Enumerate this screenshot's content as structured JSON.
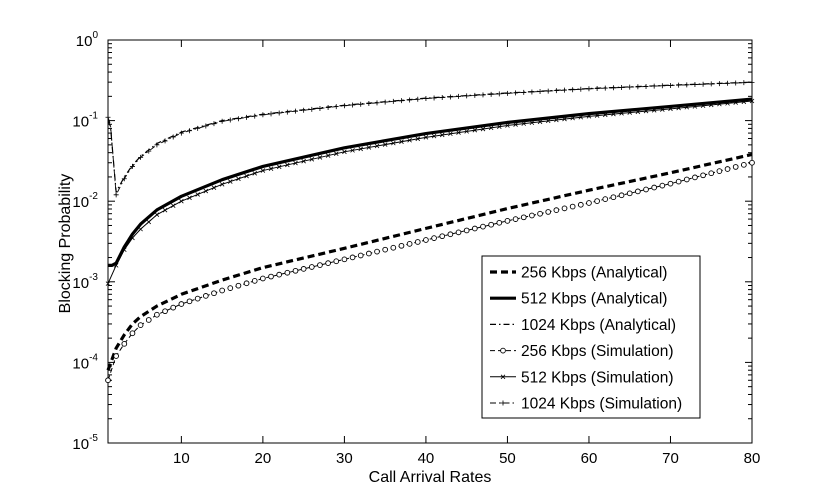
{
  "chart_data": {
    "type": "line",
    "title": "",
    "xlabel": "Call Arrival Rates",
    "ylabel": "Blocking Probability",
    "xlim": [
      1,
      80
    ],
    "ylim": [
      1e-05,
      1
    ],
    "yscale": "log",
    "grid": false,
    "legend_position": "bottom-right",
    "x_ticks": [
      10,
      20,
      30,
      40,
      50,
      60,
      70,
      80
    ],
    "x_tick_labels": [
      "10",
      "20",
      "30",
      "40",
      "50",
      "60",
      "70",
      "80"
    ],
    "y_ticks": [
      {
        "value": 1e-05,
        "base": "10",
        "exp": "-5"
      },
      {
        "value": 0.0001,
        "base": "10",
        "exp": "-4"
      },
      {
        "value": 0.001,
        "base": "10",
        "exp": "-3"
      },
      {
        "value": 0.01,
        "base": "10",
        "exp": "-2"
      },
      {
        "value": 0.1,
        "base": "10",
        "exp": "-1"
      },
      {
        "value": 1,
        "base": "10",
        "exp": "0"
      }
    ],
    "series": [
      {
        "name": "256 Kbps (Analytical)",
        "style": "dashed-thick",
        "marker": "none",
        "x": [
          1,
          2,
          3,
          4,
          5,
          7,
          10,
          15,
          20,
          30,
          40,
          50,
          60,
          70,
          80
        ],
        "y": [
          8e-05,
          0.00015,
          0.00022,
          0.0003,
          0.00037,
          0.0005,
          0.0007,
          0.00105,
          0.0015,
          0.0026,
          0.0046,
          0.0081,
          0.0137,
          0.0225,
          0.038
        ]
      },
      {
        "name": "512 Kbps (Analytical)",
        "style": "solid-thick",
        "marker": "none",
        "x": [
          1,
          1.5,
          2,
          3,
          4,
          5,
          7,
          10,
          15,
          20,
          30,
          40,
          50,
          60,
          70,
          80
        ],
        "y": [
          0.0016,
          0.0016,
          0.0017,
          0.0027,
          0.0039,
          0.0052,
          0.0078,
          0.0115,
          0.0185,
          0.027,
          0.046,
          0.069,
          0.095,
          0.122,
          0.15,
          0.185
        ]
      },
      {
        "name": "1024 Kbps (Analytical)",
        "style": "dashdot",
        "marker": "none",
        "x": [
          1,
          1.3,
          2,
          3,
          4,
          5,
          7,
          10,
          15,
          20,
          30,
          40,
          50,
          60,
          70,
          80
        ],
        "y": [
          0.1,
          0.085,
          0.013,
          0.02,
          0.028,
          0.036,
          0.052,
          0.072,
          0.1,
          0.12,
          0.155,
          0.19,
          0.22,
          0.25,
          0.275,
          0.3
        ]
      },
      {
        "name": "256 Kbps (Simulation)",
        "style": "dashed-thin",
        "marker": "circle",
        "x": [
          1,
          2,
          3,
          4,
          5,
          7,
          10,
          15,
          20,
          30,
          40,
          50,
          60,
          70,
          80
        ],
        "y": [
          6e-05,
          0.00012,
          0.00017,
          0.00023,
          0.00029,
          0.00039,
          0.00053,
          0.00078,
          0.0011,
          0.0019,
          0.0033,
          0.0057,
          0.0095,
          0.0165,
          0.03
        ]
      },
      {
        "name": "512 Kbps (Simulation)",
        "style": "solid-thin",
        "marker": "x",
        "x": [
          1,
          2,
          3,
          4,
          5,
          7,
          10,
          15,
          20,
          30,
          40,
          50,
          60,
          70,
          80
        ],
        "y": [
          0.00095,
          0.0016,
          0.0025,
          0.0035,
          0.0045,
          0.0068,
          0.01,
          0.0162,
          0.024,
          0.041,
          0.062,
          0.087,
          0.113,
          0.14,
          0.175
        ]
      },
      {
        "name": "1024 Kbps (Simulation)",
        "style": "dashdot-thin",
        "marker": "plus",
        "x": [
          1,
          1.3,
          2,
          3,
          4,
          5,
          7,
          10,
          15,
          20,
          30,
          40,
          50,
          60,
          70,
          80
        ],
        "y": [
          0.11,
          0.09,
          0.012,
          0.019,
          0.027,
          0.035,
          0.05,
          0.07,
          0.098,
          0.118,
          0.153,
          0.188,
          0.218,
          0.248,
          0.273,
          0.298
        ]
      }
    ]
  }
}
